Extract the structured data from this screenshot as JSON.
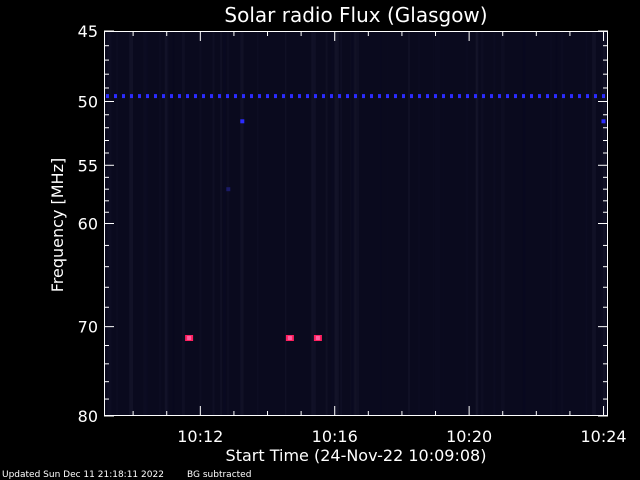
{
  "chart_data": {
    "type": "heatmap",
    "title": "Solar radio Flux (Glasgow)",
    "xlabel": "Start Time (24-Nov-22 10:09:08)",
    "ylabel": "Frequency [MHz]",
    "x_ticks": [
      "10:12",
      "10:16",
      "10:20",
      "10:24"
    ],
    "y_ticks": [
      45,
      50,
      55,
      60,
      70,
      80
    ],
    "ylim": [
      45,
      80
    ],
    "y_scale": "log",
    "background": "#0a0a1e",
    "colors": {
      "band": "#2b2bff",
      "burst": "#ff2060",
      "burst_core": "#ff60a0",
      "faint": "#1a1a66"
    },
    "features": [
      {
        "kind": "band",
        "label": "horizontal interference line",
        "freq": 49.6
      },
      {
        "kind": "burst",
        "time": "10:11:40",
        "freq": 71.2
      },
      {
        "kind": "burst",
        "time": "10:14:40",
        "freq": 71.2
      },
      {
        "kind": "burst",
        "time": "10:15:30",
        "freq": 71.2
      },
      {
        "kind": "faint",
        "time": "10:13:15",
        "freq": 51.5
      },
      {
        "kind": "faint",
        "time": "10:24:00",
        "freq": 51.5
      },
      {
        "kind": "faint",
        "time": "10:12:50",
        "freq": 57.0
      }
    ]
  },
  "footer": {
    "updated": "Updated Sun Dec 11 21:18:11 2022",
    "note": "BG subtracted"
  }
}
